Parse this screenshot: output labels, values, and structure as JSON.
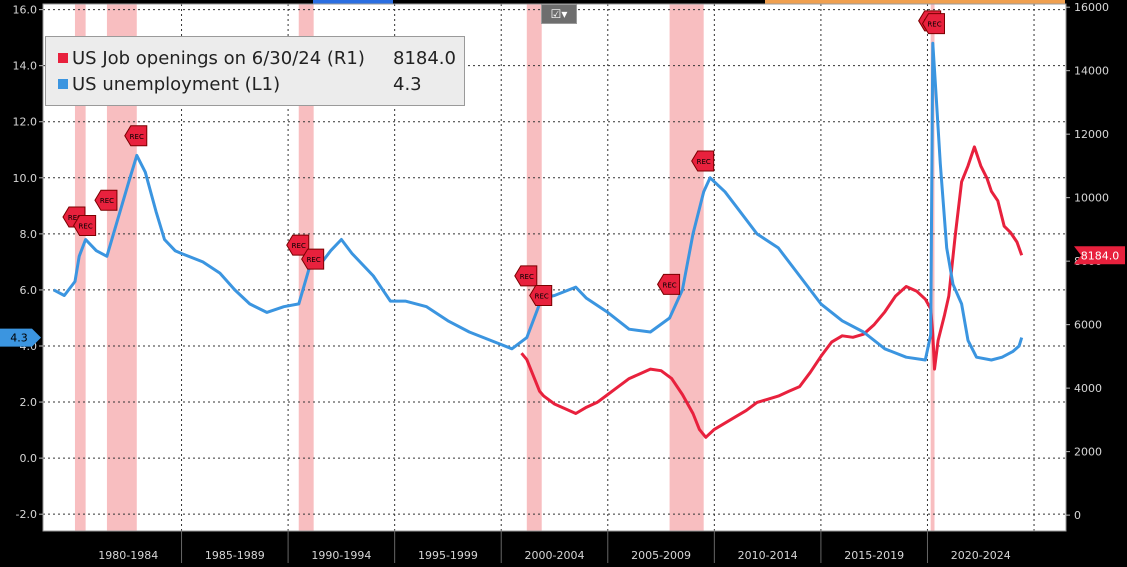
{
  "chart_data": {
    "type": "line",
    "title": "",
    "xlabel": "",
    "x_periods": [
      "1980-1984",
      "1985-1989",
      "1990-1994",
      "1995-1999",
      "2000-2004",
      "2005-2009",
      "2010-2014",
      "2015-2019",
      "2020-2024"
    ],
    "x_range": [
      1978.5,
      2026.5
    ],
    "y_left": {
      "label": "",
      "range": [
        -2.6,
        16.2
      ],
      "ticks": [
        "-2.0",
        "0.0",
        "2.0",
        "4.0",
        "6.0",
        "8.0",
        "10.0",
        "12.0",
        "14.0",
        "16.0"
      ]
    },
    "y_right": {
      "label": "",
      "range": [
        -500,
        16100
      ],
      "ticks": [
        "0",
        "2000",
        "4000",
        "6000",
        "8000",
        "10000",
        "12000",
        "14000",
        "16000"
      ]
    },
    "grid": true,
    "legend_position": "top-left",
    "recessions": [
      {
        "start": 1980.0,
        "end": 1980.5
      },
      {
        "start": 1981.5,
        "end": 1982.9
      },
      {
        "start": 1990.5,
        "end": 1991.2
      },
      {
        "start": 2001.2,
        "end": 2001.9
      },
      {
        "start": 2007.9,
        "end": 2009.5
      },
      {
        "start": 2020.15,
        "end": 2020.33
      }
    ],
    "rec_label": "REC",
    "rec_markers": [
      {
        "x": 1980.0,
        "y": 8.6
      },
      {
        "x": 1980.5,
        "y": 8.3
      },
      {
        "x": 1981.5,
        "y": 9.2
      },
      {
        "x": 1982.9,
        "y": 11.5
      },
      {
        "x": 1990.5,
        "y": 7.6
      },
      {
        "x": 1991.2,
        "y": 7.1
      },
      {
        "x": 2001.2,
        "y": 6.5
      },
      {
        "x": 2001.9,
        "y": 5.8
      },
      {
        "x": 2007.9,
        "y": 6.2
      },
      {
        "x": 2009.5,
        "y": 10.6
      },
      {
        "x": 2020.15,
        "y": 15.6
      },
      {
        "x": 2020.33,
        "y": 15.5
      }
    ],
    "series": [
      {
        "name": "US Job openings on 6/30/24 (R1)",
        "axis": "right",
        "color": "#e8213d",
        "last_value": "8184.0",
        "points": [
          [
            2000.95,
            5100
          ],
          [
            2001.2,
            4900
          ],
          [
            2001.5,
            4400
          ],
          [
            2001.8,
            3900
          ],
          [
            2002.0,
            3750
          ],
          [
            2002.5,
            3500
          ],
          [
            2003.0,
            3350
          ],
          [
            2003.5,
            3200
          ],
          [
            2004.0,
            3400
          ],
          [
            2004.5,
            3550
          ],
          [
            2005.0,
            3800
          ],
          [
            2005.5,
            4050
          ],
          [
            2006.0,
            4300
          ],
          [
            2006.5,
            4450
          ],
          [
            2007.0,
            4600
          ],
          [
            2007.5,
            4550
          ],
          [
            2008.0,
            4300
          ],
          [
            2008.5,
            3800
          ],
          [
            2009.0,
            3200
          ],
          [
            2009.3,
            2700
          ],
          [
            2009.6,
            2450
          ],
          [
            2010.0,
            2700
          ],
          [
            2010.5,
            2900
          ],
          [
            2011.0,
            3100
          ],
          [
            2011.5,
            3300
          ],
          [
            2012.0,
            3550
          ],
          [
            2012.5,
            3650
          ],
          [
            2013.0,
            3750
          ],
          [
            2013.5,
            3900
          ],
          [
            2014.0,
            4050
          ],
          [
            2014.5,
            4500
          ],
          [
            2015.0,
            5000
          ],
          [
            2015.5,
            5450
          ],
          [
            2016.0,
            5650
          ],
          [
            2016.5,
            5600
          ],
          [
            2017.0,
            5700
          ],
          [
            2017.5,
            6000
          ],
          [
            2018.0,
            6400
          ],
          [
            2018.5,
            6900
          ],
          [
            2019.0,
            7200
          ],
          [
            2019.5,
            7050
          ],
          [
            2019.9,
            6800
          ],
          [
            2020.15,
            6500
          ],
          [
            2020.25,
            5700
          ],
          [
            2020.33,
            4600
          ],
          [
            2020.5,
            5500
          ],
          [
            2020.8,
            6300
          ],
          [
            2021.0,
            6900
          ],
          [
            2021.3,
            8800
          ],
          [
            2021.6,
            10500
          ],
          [
            2021.9,
            11000
          ],
          [
            2022.2,
            11600
          ],
          [
            2022.5,
            11000
          ],
          [
            2022.8,
            10600
          ],
          [
            2023.0,
            10200
          ],
          [
            2023.3,
            9900
          ],
          [
            2023.6,
            9100
          ],
          [
            2023.9,
            8900
          ],
          [
            2024.2,
            8600
          ],
          [
            2024.42,
            8184
          ]
        ]
      },
      {
        "name": "US unemployment (L1)",
        "axis": "left",
        "color": "#3b95e0",
        "last_value": "4.3",
        "points": [
          [
            1979.0,
            6.0
          ],
          [
            1979.5,
            5.8
          ],
          [
            1980.0,
            6.3
          ],
          [
            1980.2,
            7.2
          ],
          [
            1980.5,
            7.8
          ],
          [
            1981.0,
            7.4
          ],
          [
            1981.5,
            7.2
          ],
          [
            1982.0,
            8.5
          ],
          [
            1982.5,
            9.8
          ],
          [
            1982.9,
            10.8
          ],
          [
            1983.3,
            10.2
          ],
          [
            1983.8,
            8.8
          ],
          [
            1984.2,
            7.8
          ],
          [
            1984.7,
            7.4
          ],
          [
            1985.0,
            7.3
          ],
          [
            1986.0,
            7.0
          ],
          [
            1986.8,
            6.6
          ],
          [
            1987.5,
            6.0
          ],
          [
            1988.2,
            5.5
          ],
          [
            1989.0,
            5.2
          ],
          [
            1989.8,
            5.4
          ],
          [
            1990.5,
            5.5
          ],
          [
            1991.0,
            6.8
          ],
          [
            1991.6,
            7.0
          ],
          [
            1992.0,
            7.4
          ],
          [
            1992.5,
            7.8
          ],
          [
            1993.0,
            7.3
          ],
          [
            1994.0,
            6.5
          ],
          [
            1994.8,
            5.6
          ],
          [
            1995.5,
            5.6
          ],
          [
            1996.5,
            5.4
          ],
          [
            1997.5,
            4.9
          ],
          [
            1998.5,
            4.5
          ],
          [
            1999.5,
            4.2
          ],
          [
            2000.5,
            3.9
          ],
          [
            2001.2,
            4.3
          ],
          [
            2001.9,
            5.7
          ],
          [
            2002.5,
            5.8
          ],
          [
            2003.5,
            6.1
          ],
          [
            2004.0,
            5.7
          ],
          [
            2005.0,
            5.2
          ],
          [
            2006.0,
            4.6
          ],
          [
            2007.0,
            4.5
          ],
          [
            2007.9,
            5.0
          ],
          [
            2008.5,
            6.0
          ],
          [
            2009.0,
            8.0
          ],
          [
            2009.5,
            9.5
          ],
          [
            2009.8,
            10.0
          ],
          [
            2010.5,
            9.5
          ],
          [
            2011.0,
            9.0
          ],
          [
            2012.0,
            8.0
          ],
          [
            2013.0,
            7.5
          ],
          [
            2014.0,
            6.5
          ],
          [
            2015.0,
            5.5
          ],
          [
            2016.0,
            4.9
          ],
          [
            2017.0,
            4.5
          ],
          [
            2018.0,
            3.9
          ],
          [
            2019.0,
            3.6
          ],
          [
            2019.9,
            3.5
          ],
          [
            2020.15,
            4.4
          ],
          [
            2020.25,
            14.8
          ],
          [
            2020.4,
            13.0
          ],
          [
            2020.6,
            10.5
          ],
          [
            2020.9,
            7.5
          ],
          [
            2021.2,
            6.2
          ],
          [
            2021.6,
            5.5
          ],
          [
            2021.9,
            4.2
          ],
          [
            2022.3,
            3.6
          ],
          [
            2023.0,
            3.5
          ],
          [
            2023.5,
            3.6
          ],
          [
            2024.0,
            3.8
          ],
          [
            2024.3,
            4.0
          ],
          [
            2024.42,
            4.3
          ]
        ]
      }
    ]
  },
  "legend": [
    {
      "label": "US Job openings on 6/30/24 (R1)",
      "value": "8184.0"
    },
    {
      "label": "US unemployment (L1)",
      "value": "4.3"
    }
  ],
  "toolbar": {
    "icon": "chart-options-icon",
    "glyph": "☑▾"
  }
}
